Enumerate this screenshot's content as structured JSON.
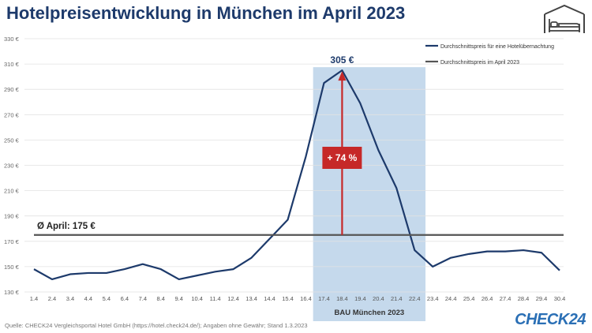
{
  "title": "Hotelpreisentwicklung in München im April 2023",
  "source": "Quelle: CHECK24 Vergleichsportal Hotel GmbH (https://hotel.check24.de/); Angaben ohne Gewähr; Stand 1.3.2023",
  "brand": "CHECK24",
  "icon": "bed-icon",
  "colors": {
    "line": "#1d3a6b",
    "average": "#555555",
    "highlight": "#c5d9ec",
    "arrow": "#c62828",
    "title": "#1d3a6b"
  },
  "chart_data": {
    "type": "line",
    "categories": [
      "1.4",
      "2.4",
      "3.4",
      "4.4",
      "5.4",
      "6.4",
      "7.4",
      "8.4",
      "9.4",
      "10.4",
      "11.4",
      "12.4",
      "13.4",
      "14.4",
      "15.4",
      "16.4",
      "17.4",
      "18.4",
      "19.4",
      "20.4",
      "21.4",
      "22.4",
      "23.4",
      "24.4",
      "25.4",
      "26.4",
      "27.4",
      "28.4",
      "29.4",
      "30.4"
    ],
    "series": [
      {
        "name": "Durchschnittspreis für eine Hotelübernachtung",
        "values": [
          148,
          140,
          144,
          145,
          145,
          148,
          152,
          148,
          140,
          143,
          146,
          148,
          157,
          172,
          187,
          237,
          295,
          305,
          279,
          242,
          212,
          163,
          150,
          157,
          160,
          162,
          162,
          163,
          161,
          147
        ]
      },
      {
        "name": "Durchschnittspreis im April 2023",
        "values": [
          175,
          175,
          175,
          175,
          175,
          175,
          175,
          175,
          175,
          175,
          175,
          175,
          175,
          175,
          175,
          175,
          175,
          175,
          175,
          175,
          175,
          175,
          175,
          175,
          175,
          175,
          175,
          175,
          175,
          175
        ]
      }
    ],
    "yticks": [
      "130 €",
      "150 €",
      "170 €",
      "190 €",
      "210 €",
      "230 €",
      "250 €",
      "270 €",
      "290 €",
      "310 €",
      "330 €"
    ],
    "ylim": [
      130,
      330
    ],
    "average_label": "Ø April: 175 €",
    "peak_label": "305 €",
    "increase_label": "+ 74 %",
    "highlight_label": "BAU München 2023",
    "highlight_range": [
      "17.4",
      "22.4"
    ],
    "grid": true,
    "legend": "top-right"
  }
}
